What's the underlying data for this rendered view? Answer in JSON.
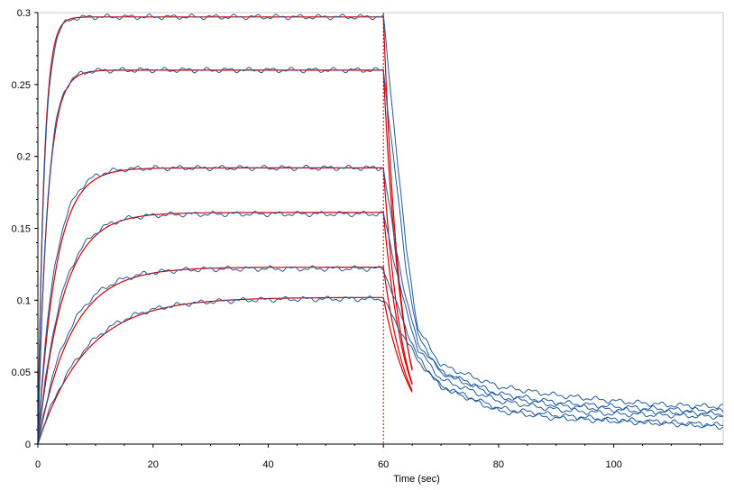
{
  "chart_data": {
    "type": "line",
    "title": "",
    "xlabel": "Time (sec)",
    "ylabel": "",
    "xlim": [
      0,
      119
    ],
    "ylim": [
      0,
      0.3
    ],
    "grid": false,
    "legend": "none",
    "x_ticks": [
      0,
      20,
      40,
      60,
      80,
      100
    ],
    "x_tick_labels": [
      "0",
      "20",
      "40",
      "60",
      "80",
      "100"
    ],
    "y_ticks": [
      0,
      0.05,
      0.1,
      0.15,
      0.2,
      0.25,
      0.3
    ],
    "y_tick_labels": [
      "0",
      "0.05",
      "0.1",
      "0.15",
      "0.2",
      "0.25",
      "0.3"
    ],
    "injection_end_time": 60,
    "colors": {
      "measured": "#1f5a9e",
      "fit": "#d40000",
      "marker_line": "#d40000",
      "axis": "#000000",
      "frame": "#c8c8c8"
    },
    "series": [
      {
        "type": "measured",
        "plateau": 0.297,
        "rate": 0.9,
        "dissociation": [
          [
            60,
            0.297
          ],
          [
            62,
            0.215
          ],
          [
            64,
            0.135
          ],
          [
            66,
            0.08
          ],
          [
            70,
            0.055
          ],
          [
            80,
            0.04
          ],
          [
            90,
            0.034
          ],
          [
            100,
            0.03
          ],
          [
            110,
            0.027
          ],
          [
            119,
            0.026
          ]
        ]
      },
      {
        "type": "measured",
        "plateau": 0.26,
        "rate": 0.62,
        "dissociation": [
          [
            60,
            0.26
          ],
          [
            62,
            0.19
          ],
          [
            64,
            0.12
          ],
          [
            66,
            0.075
          ],
          [
            70,
            0.05
          ],
          [
            80,
            0.035
          ],
          [
            90,
            0.029
          ],
          [
            100,
            0.026
          ],
          [
            110,
            0.024
          ],
          [
            119,
            0.023
          ]
        ]
      },
      {
        "type": "measured",
        "plateau": 0.192,
        "rate": 0.35,
        "dissociation": [
          [
            60,
            0.192
          ],
          [
            62,
            0.14
          ],
          [
            64,
            0.1
          ],
          [
            66,
            0.07
          ],
          [
            70,
            0.05
          ],
          [
            80,
            0.033
          ],
          [
            90,
            0.027
          ],
          [
            100,
            0.024
          ],
          [
            110,
            0.022
          ],
          [
            119,
            0.021
          ]
        ]
      },
      {
        "type": "measured",
        "plateau": 0.16,
        "rate": 0.25,
        "dissociation": [
          [
            60,
            0.16
          ],
          [
            62,
            0.125
          ],
          [
            64,
            0.092
          ],
          [
            66,
            0.066
          ],
          [
            70,
            0.045
          ],
          [
            80,
            0.03
          ],
          [
            90,
            0.024
          ],
          [
            100,
            0.021
          ],
          [
            110,
            0.02
          ],
          [
            119,
            0.019
          ]
        ]
      },
      {
        "type": "measured",
        "plateau": 0.122,
        "rate": 0.19,
        "dissociation": [
          [
            60,
            0.122
          ],
          [
            62,
            0.1
          ],
          [
            64,
            0.08
          ],
          [
            66,
            0.06
          ],
          [
            70,
            0.04
          ],
          [
            80,
            0.025
          ],
          [
            90,
            0.02
          ],
          [
            100,
            0.017
          ],
          [
            110,
            0.015
          ],
          [
            119,
            0.013
          ]
        ]
      },
      {
        "type": "measured",
        "plateau": 0.101,
        "rate": 0.13,
        "dissociation": [
          [
            60,
            0.101
          ],
          [
            62,
            0.085
          ],
          [
            64,
            0.072
          ],
          [
            66,
            0.058
          ],
          [
            70,
            0.04
          ],
          [
            80,
            0.023
          ],
          [
            90,
            0.018
          ],
          [
            100,
            0.016
          ],
          [
            110,
            0.014
          ],
          [
            119,
            0.012
          ]
        ]
      }
    ],
    "fits": [
      {
        "plateau": 0.297,
        "rate": 0.95,
        "koff": 0.11,
        "end": 65
      },
      {
        "plateau": 0.26,
        "rate": 0.6,
        "koff": 0.1,
        "end": 65
      },
      {
        "plateau": 0.192,
        "rate": 0.32,
        "koff": 0.095,
        "end": 65
      },
      {
        "plateau": 0.161,
        "rate": 0.23,
        "koff": 0.085,
        "end": 65
      },
      {
        "plateau": 0.123,
        "rate": 0.17,
        "koff": 0.075,
        "end": 65
      },
      {
        "plateau": 0.102,
        "rate": 0.12,
        "koff": 0.065,
        "end": 65
      }
    ]
  }
}
